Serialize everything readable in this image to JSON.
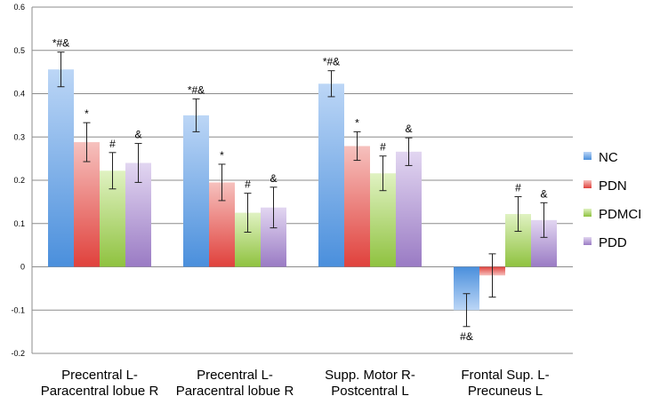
{
  "chart_data": {
    "type": "bar",
    "title": "",
    "xlabel": "",
    "ylabel": "",
    "ylim": [
      -0.2,
      0.6
    ],
    "yticks": [
      "0.6",
      "0.5",
      "0.4",
      "0.3",
      "0.2",
      "0.1",
      "0",
      "-0.1",
      "-0.2"
    ],
    "ytick_values": [
      0.6,
      0.5,
      0.4,
      0.3,
      0.2,
      0.1,
      0,
      -0.1,
      -0.2
    ],
    "grid": true,
    "legend_position": "right",
    "categories": [
      [
        "Precentral L-",
        "Paracentral lobue R"
      ],
      [
        "Precentral L-",
        "Paracentral lobue R"
      ],
      [
        "Supp. Motor R-",
        "Postcentral L"
      ],
      [
        "Frontal Sup. L-",
        "Precuneus L"
      ]
    ],
    "series": [
      {
        "name": "NC",
        "color": "#4a8fdc",
        "light": "#bcd6f6",
        "values": [
          0.456,
          0.35,
          0.423,
          -0.1
        ],
        "errors": [
          0.04,
          0.038,
          0.03,
          0.038
        ]
      },
      {
        "name": "PDN",
        "color": "#e0413c",
        "light": "#f6c1be",
        "values": [
          0.288,
          0.195,
          0.279,
          -0.02
        ],
        "errors": [
          0.045,
          0.042,
          0.033,
          0.05
        ]
      },
      {
        "name": "PDMCI",
        "color": "#8fc23f",
        "light": "#e0f2c2",
        "values": [
          0.222,
          0.125,
          0.216,
          0.122
        ],
        "errors": [
          0.042,
          0.045,
          0.04,
          0.04
        ]
      },
      {
        "name": "PDD",
        "color": "#9a7bc4",
        "light": "#e2d6f1",
        "values": [
          0.24,
          0.137,
          0.266,
          0.108
        ],
        "errors": [
          0.045,
          0.047,
          0.032,
          0.04
        ]
      }
    ],
    "annotations": [
      {
        "group": 0,
        "series": 0,
        "text": "*#&"
      },
      {
        "group": 0,
        "series": 1,
        "text": "*"
      },
      {
        "group": 0,
        "series": 2,
        "text": "#"
      },
      {
        "group": 0,
        "series": 3,
        "text": "&"
      },
      {
        "group": 1,
        "series": 0,
        "text": "*#&"
      },
      {
        "group": 1,
        "series": 1,
        "text": "*"
      },
      {
        "group": 1,
        "series": 2,
        "text": "#"
      },
      {
        "group": 1,
        "series": 3,
        "text": "&"
      },
      {
        "group": 2,
        "series": 0,
        "text": "*#&"
      },
      {
        "group": 2,
        "series": 1,
        "text": "*"
      },
      {
        "group": 2,
        "series": 2,
        "text": "#"
      },
      {
        "group": 2,
        "series": 3,
        "text": "&"
      },
      {
        "group": 3,
        "series": 0,
        "text": "#&"
      },
      {
        "group": 3,
        "series": 2,
        "text": "#"
      },
      {
        "group": 3,
        "series": 3,
        "text": "&"
      }
    ]
  }
}
